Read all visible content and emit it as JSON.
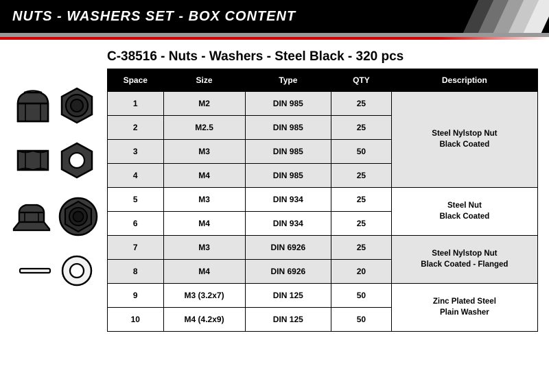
{
  "header": {
    "title": "NUTS - WASHERS SET - BOX CONTENT",
    "slash_colors": [
      "#000000",
      "#404040",
      "#707070",
      "#9e9e9e",
      "#c8c8c8",
      "#e8e8e8"
    ],
    "sub_band_color": "#999999",
    "red_band_color": "#d40000"
  },
  "product_title": "C-38516 - Nuts - Washers - Steel Black - 320 pcs",
  "table": {
    "header_bg": "#000000",
    "header_color": "#ffffff",
    "alt_row_bg": "#e4e4e4",
    "columns": [
      "Space",
      "Size",
      "Type",
      "QTY",
      "Description"
    ],
    "groups": [
      {
        "description": "Steel Nylstop Nut\nBlack Coated",
        "row_style": "alt",
        "rows": [
          {
            "space": "1",
            "size": "M2",
            "type": "DIN 985",
            "qty": "25"
          },
          {
            "space": "2",
            "size": "M2.5",
            "type": "DIN 985",
            "qty": "25"
          },
          {
            "space": "3",
            "size": "M3",
            "type": "DIN 985",
            "qty": "50"
          },
          {
            "space": "4",
            "size": "M4",
            "type": "DIN 985",
            "qty": "25"
          }
        ]
      },
      {
        "description": "Steel Nut\nBlack Coated",
        "row_style": "plain",
        "rows": [
          {
            "space": "5",
            "size": "M3",
            "type": "DIN 934",
            "qty": "25"
          },
          {
            "space": "6",
            "size": "M4",
            "type": "DIN 934",
            "qty": "25"
          }
        ]
      },
      {
        "description": "Steel Nylstop Nut\nBlack Coated - Flanged",
        "row_style": "alt",
        "rows": [
          {
            "space": "7",
            "size": "M3",
            "type": "DIN 6926",
            "qty": "25"
          },
          {
            "space": "8",
            "size": "M4",
            "type": "DIN 6926",
            "qty": "20"
          }
        ]
      },
      {
        "description": "Zinc Plated Steel\nPlain Washer",
        "row_style": "plain",
        "rows": [
          {
            "space": "9",
            "size": "M3 (3.2x7)",
            "type": "DIN 125",
            "qty": "50"
          },
          {
            "space": "10",
            "size": "M4 (4.2x9)",
            "type": "DIN 125",
            "qty": "50"
          }
        ]
      }
    ]
  },
  "icons": {
    "outline": "#000000",
    "dark_fill": "#3a3a3a",
    "darker_fill": "#2a2a2a",
    "light_fill": "#ffffff",
    "zinc_fill": "#f2f2f2"
  }
}
